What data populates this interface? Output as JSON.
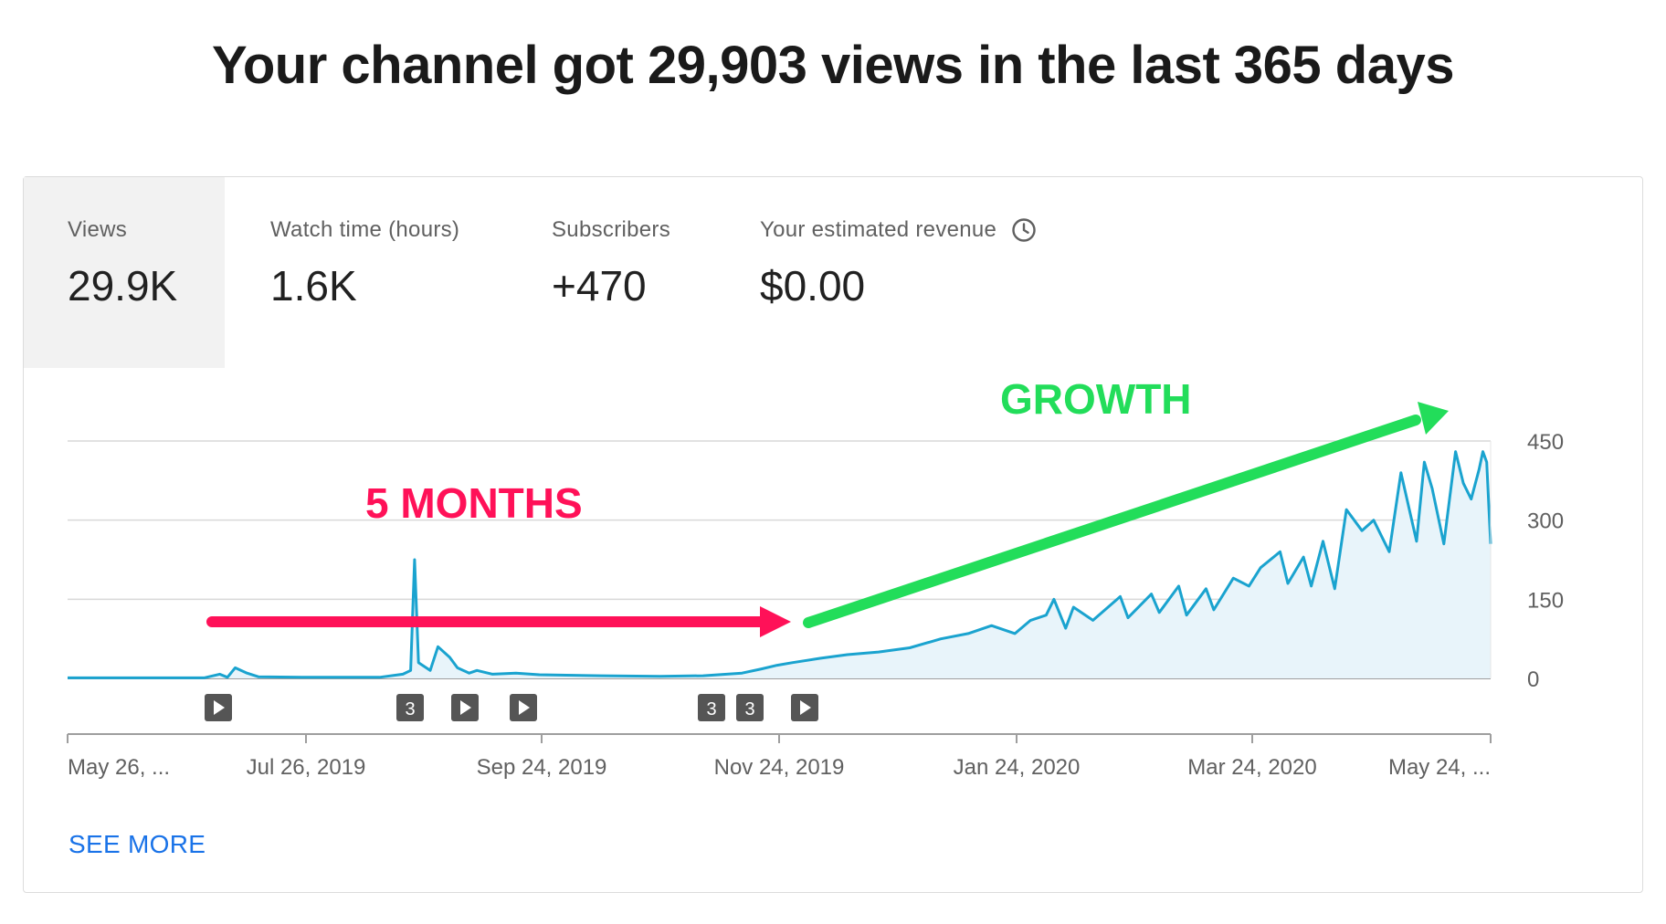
{
  "headline": "Your channel got 29,903 views in the last 365 days",
  "metrics": [
    {
      "label": "Views",
      "value": "29.9K",
      "selected": true
    },
    {
      "label": "Watch time (hours)",
      "value": "1.6K",
      "selected": false
    },
    {
      "label": "Subscribers",
      "value": "+470",
      "selected": false
    },
    {
      "label": "Your estimated revenue",
      "value": "$0.00",
      "selected": false,
      "icon": "clock-icon"
    }
  ],
  "see_more": "SEE MORE",
  "annotations": {
    "months_text": "5 MONTHS",
    "months_color": "#ff1158",
    "growth_text": "GROWTH",
    "growth_color": "#22dd5a"
  },
  "markers": [
    "play-icon",
    "3",
    "play-icon",
    "play-icon",
    "3",
    "3",
    "play-icon"
  ],
  "chart_data": {
    "type": "area",
    "x_start": "May 26, 2019",
    "x_end": "May 25, 2020",
    "x_tick_labels": [
      "May 26, ...",
      "Jul 26, 2019",
      "Sep 24, 2019",
      "Nov 24, 2019",
      "Jan 24, 2020",
      "Mar 24, 2020",
      "May 24, ..."
    ],
    "y_ticks": [
      0,
      150,
      300,
      450
    ],
    "ylim": [
      0,
      450
    ],
    "series": [
      {
        "color": "#1aa3cf",
        "fill": "#e8f4fa",
        "points": [
          [
            "2019-05-26",
            1
          ],
          [
            "2019-06-30",
            1
          ],
          [
            "2019-07-04",
            8
          ],
          [
            "2019-07-06",
            2
          ],
          [
            "2019-07-08",
            20
          ],
          [
            "2019-07-11",
            10
          ],
          [
            "2019-07-14",
            3
          ],
          [
            "2019-07-25",
            2
          ],
          [
            "2019-08-14",
            2
          ],
          [
            "2019-08-20",
            8
          ],
          [
            "2019-08-22",
            15
          ],
          [
            "2019-08-23",
            225
          ],
          [
            "2019-08-24",
            30
          ],
          [
            "2019-08-27",
            15
          ],
          [
            "2019-08-29",
            60
          ],
          [
            "2019-09-01",
            40
          ],
          [
            "2019-09-03",
            20
          ],
          [
            "2019-09-06",
            10
          ],
          [
            "2019-09-08",
            15
          ],
          [
            "2019-09-12",
            8
          ],
          [
            "2019-09-18",
            10
          ],
          [
            "2019-09-24",
            7
          ],
          [
            "2019-10-01",
            6
          ],
          [
            "2019-10-10",
            5
          ],
          [
            "2019-10-25",
            4
          ],
          [
            "2019-11-05",
            5
          ],
          [
            "2019-11-15",
            10
          ],
          [
            "2019-11-20",
            18
          ],
          [
            "2019-11-24",
            25
          ],
          [
            "2019-11-28",
            30
          ],
          [
            "2019-12-05",
            38
          ],
          [
            "2019-12-12",
            45
          ],
          [
            "2019-12-20",
            50
          ],
          [
            "2019-12-28",
            58
          ],
          [
            "2020-01-05",
            75
          ],
          [
            "2020-01-12",
            85
          ],
          [
            "2020-01-18",
            100
          ],
          [
            "2020-01-24",
            85
          ],
          [
            "2020-01-28",
            110
          ],
          [
            "2020-02-01",
            120
          ],
          [
            "2020-02-03",
            150
          ],
          [
            "2020-02-06",
            95
          ],
          [
            "2020-02-08",
            135
          ],
          [
            "2020-02-13",
            110
          ],
          [
            "2020-02-20",
            155
          ],
          [
            "2020-02-22",
            115
          ],
          [
            "2020-02-28",
            160
          ],
          [
            "2020-03-01",
            125
          ],
          [
            "2020-03-06",
            175
          ],
          [
            "2020-03-08",
            120
          ],
          [
            "2020-03-13",
            170
          ],
          [
            "2020-03-15",
            130
          ],
          [
            "2020-03-20",
            190
          ],
          [
            "2020-03-24",
            175
          ],
          [
            "2020-03-27",
            210
          ],
          [
            "2020-04-01",
            240
          ],
          [
            "2020-04-03",
            180
          ],
          [
            "2020-04-07",
            230
          ],
          [
            "2020-04-09",
            175
          ],
          [
            "2020-04-12",
            260
          ],
          [
            "2020-04-15",
            170
          ],
          [
            "2020-04-18",
            320
          ],
          [
            "2020-04-22",
            280
          ],
          [
            "2020-04-25",
            300
          ],
          [
            "2020-04-29",
            240
          ],
          [
            "2020-05-02",
            390
          ],
          [
            "2020-05-06",
            260
          ],
          [
            "2020-05-08",
            410
          ],
          [
            "2020-05-10",
            360
          ],
          [
            "2020-05-13",
            255
          ],
          [
            "2020-05-16",
            430
          ],
          [
            "2020-05-18",
            370
          ],
          [
            "2020-05-20",
            340
          ],
          [
            "2020-05-22",
            395
          ],
          [
            "2020-05-23",
            430
          ],
          [
            "2020-05-24",
            410
          ],
          [
            "2020-05-25",
            255
          ]
        ]
      }
    ]
  }
}
